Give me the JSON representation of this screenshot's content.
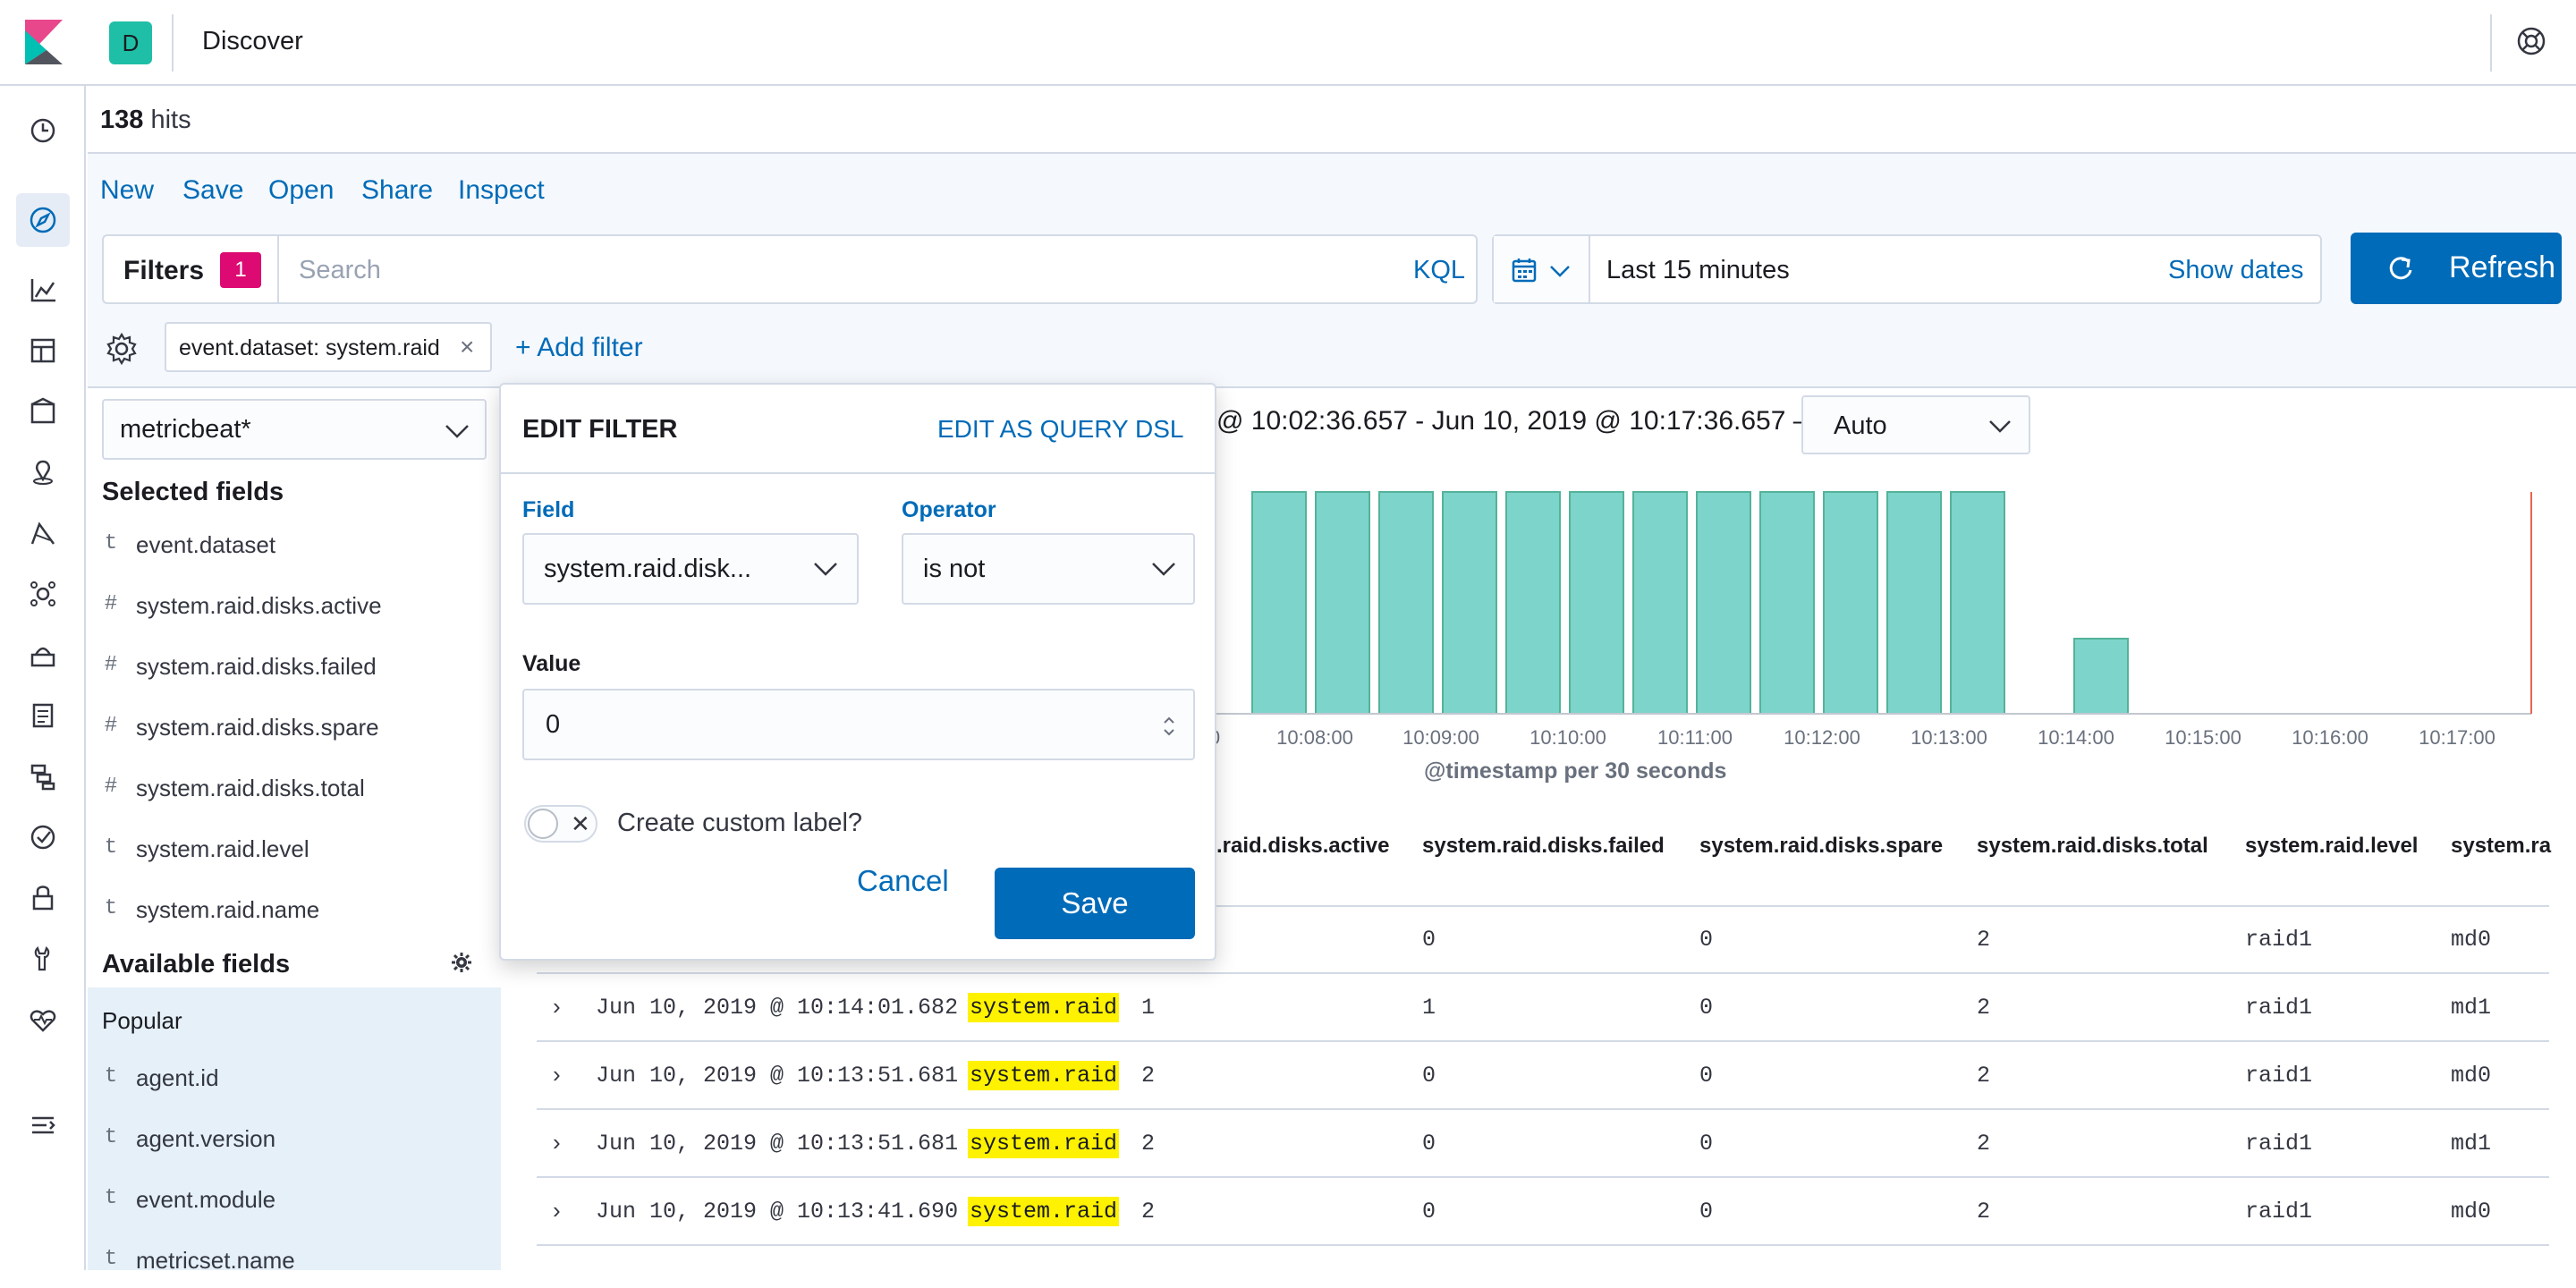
{
  "header": {
    "space_initial": "D",
    "app_title": "Discover"
  },
  "hits": {
    "count": "138",
    "label": "hits"
  },
  "top_nav": [
    "New",
    "Save",
    "Open",
    "Share",
    "Inspect"
  ],
  "search": {
    "filters_label": "Filters",
    "filters_count": "1",
    "placeholder": "Search",
    "language_button": "KQL"
  },
  "date_picker": {
    "range_label": "Last 15 minutes",
    "show_dates": "Show dates"
  },
  "refresh_label": "Refresh",
  "filter_bar": {
    "pill_text": "event.dataset: system.raid",
    "add_filter": "+ Add filter"
  },
  "sidebar": {
    "index_pattern": "metricbeat*",
    "selected_title": "Selected fields",
    "selected_fields": [
      {
        "type": "t",
        "name": "event.dataset"
      },
      {
        "type": "#",
        "name": "system.raid.disks.active"
      },
      {
        "type": "#",
        "name": "system.raid.disks.failed"
      },
      {
        "type": "#",
        "name": "system.raid.disks.spare"
      },
      {
        "type": "#",
        "name": "system.raid.disks.total"
      },
      {
        "type": "t",
        "name": "system.raid.level"
      },
      {
        "type": "t",
        "name": "system.raid.name"
      }
    ],
    "available_title": "Available fields",
    "popular_label": "Popular",
    "available_fields": [
      {
        "type": "t",
        "name": "agent.id"
      },
      {
        "type": "t",
        "name": "agent.version"
      },
      {
        "type": "t",
        "name": "event.module"
      },
      {
        "type": "t",
        "name": "metricset.name"
      }
    ]
  },
  "time_bar": {
    "range_text": "@ 10:02:36.657 - Jun 10, 2019 @ 10:17:36.657 —",
    "interval": "Auto"
  },
  "histogram": {
    "x_axis_title": "@timestamp per 30 seconds",
    "tick_labels": [
      "0",
      "10:08:00",
      "10:09:00",
      "10:10:00",
      "10:11:00",
      "10:12:00",
      "10:13:00",
      "10:14:00",
      "10:15:00",
      "10:16:00",
      "10:17:00"
    ],
    "bar_fill": "#7dd4cb",
    "bar_stroke": "#54b399"
  },
  "table": {
    "columns": [
      ".raid.disks.active",
      "system.raid.disks.failed",
      "system.raid.disks.spare",
      "system.raid.disks.total",
      "system.raid.level",
      "system.ra"
    ],
    "rows": [
      {
        "time": "",
        "dataset": "",
        "active": "",
        "failed": "0",
        "spare": "0",
        "total": "2",
        "level": "raid1",
        "name": "md0"
      },
      {
        "time": "Jun 10, 2019 @ 10:14:01.682",
        "dataset": "system.raid",
        "active": "1",
        "failed": "1",
        "spare": "0",
        "total": "2",
        "level": "raid1",
        "name": "md1"
      },
      {
        "time": "Jun 10, 2019 @ 10:13:51.681",
        "dataset": "system.raid",
        "active": "2",
        "failed": "0",
        "spare": "0",
        "total": "2",
        "level": "raid1",
        "name": "md0"
      },
      {
        "time": "Jun 10, 2019 @ 10:13:51.681",
        "dataset": "system.raid",
        "active": "2",
        "failed": "0",
        "spare": "0",
        "total": "2",
        "level": "raid1",
        "name": "md1"
      },
      {
        "time": "Jun 10, 2019 @ 10:13:41.690",
        "dataset": "system.raid",
        "active": "2",
        "failed": "0",
        "spare": "0",
        "total": "2",
        "level": "raid1",
        "name": "md0"
      }
    ]
  },
  "edit_filter": {
    "title": "EDIT FILTER",
    "edit_dsl": "EDIT AS QUERY DSL",
    "field_label": "Field",
    "field_value": "system.raid.disk...",
    "operator_label": "Operator",
    "operator_value": "is not",
    "value_label": "Value",
    "value": "0",
    "custom_label": "Create custom label?",
    "cancel": "Cancel",
    "save": "Save"
  },
  "colors": {
    "accent": "#006bb8",
    "badge": "#dd0a73",
    "space": "#1fbfa7",
    "highlight": "#fff200"
  }
}
